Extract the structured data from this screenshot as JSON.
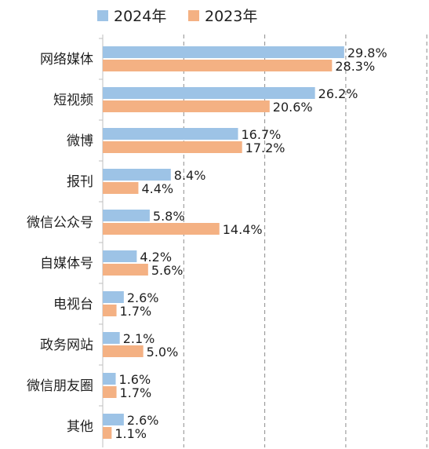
{
  "chart_data": {
    "type": "bar",
    "orientation": "horizontal",
    "title": "",
    "xlabel": "",
    "ylabel": "",
    "xlim": [
      0,
      40
    ],
    "grid": "vertical-dashed",
    "legend_position": "top-left",
    "value_suffix": "%",
    "categories": [
      "网络媒体",
      "短视频",
      "微博",
      "报刊",
      "微信公众号",
      "自媒体号",
      "电视台",
      "政务网站",
      "微信朋友圈",
      "其他"
    ],
    "series": [
      {
        "name": "2024年",
        "color": "#9dc3e6",
        "values": [
          29.8,
          26.2,
          16.7,
          8.4,
          5.8,
          4.2,
          2.6,
          2.1,
          1.6,
          2.6
        ]
      },
      {
        "name": "2023年",
        "color": "#f4b183",
        "values": [
          28.3,
          20.6,
          17.2,
          4.4,
          14.4,
          5.6,
          1.7,
          5.0,
          1.7,
          1.1
        ]
      }
    ]
  }
}
